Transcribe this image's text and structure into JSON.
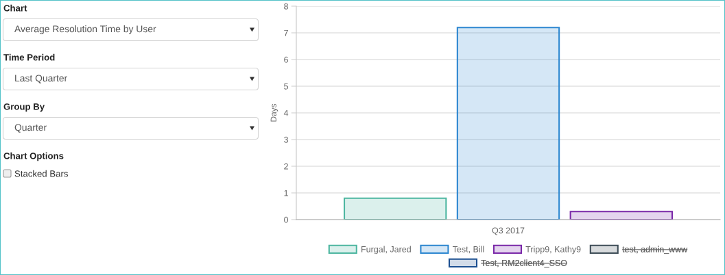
{
  "chart_data": [
    {
      "type": "other",
      "annotations": [
        "Chart",
        "Average Resolution Time by User",
        "Time Period",
        "Last Quarter",
        "Group By",
        "Quarter",
        "Chart Options",
        "Stacked Bars"
      ]
    },
    {
      "type": "bar",
      "categories": [
        "Q3 2017"
      ],
      "ylabel": "Days",
      "ylim": [
        0,
        8
      ],
      "yticks": [
        0,
        1,
        2,
        3,
        4,
        5,
        6,
        7,
        8
      ],
      "grid": "y",
      "legend": "bottom",
      "series": [
        {
          "name": "Furgal, Jared",
          "color": "#4db6a0",
          "values": [
            0.8
          ]
        },
        {
          "name": "Test, Bill",
          "color": "#2d87d0",
          "values": [
            7.2
          ]
        },
        {
          "name": "Tripp9, Kathy9",
          "color": "#7a28a8",
          "values": [
            0.3
          ]
        },
        {
          "name": "test, admin_www",
          "color": "#3e4d57",
          "values": [
            null
          ]
        },
        {
          "name": "Test, RM2client4_SSO",
          "color": "#1c4f91",
          "values": [
            null
          ]
        }
      ]
    }
  ]
}
